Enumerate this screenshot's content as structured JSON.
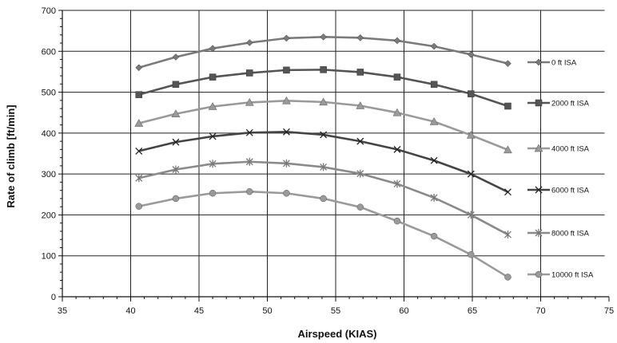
{
  "chart_data": {
    "type": "line",
    "xlabel": "Airspeed (KIAS)",
    "ylabel": "Rate of climb [ft/min]",
    "xlim": [
      35,
      75
    ],
    "ylim": [
      0,
      700
    ],
    "x_ticks": [
      35,
      40,
      45,
      50,
      55,
      60,
      65,
      70,
      75
    ],
    "y_ticks": [
      0,
      100,
      200,
      300,
      400,
      500,
      600,
      700
    ],
    "grid": true,
    "legend_position": "right",
    "x": [
      40.6,
      43.3,
      46.0,
      48.7,
      51.4,
      54.1,
      56.8,
      59.5,
      62.2,
      64.9,
      67.6
    ],
    "series": [
      {
        "name": "0 ft ISA",
        "marker": "diamond",
        "color": "#7a7a7a",
        "values": [
          560,
          586,
          607,
          621,
          632,
          635,
          633,
          626,
          612,
          592,
          570
        ]
      },
      {
        "name": "2000 ft ISA",
        "marker": "square",
        "color": "#555555",
        "values": [
          494,
          519,
          537,
          547,
          554,
          555,
          549,
          537,
          519,
          496,
          466
        ]
      },
      {
        "name": "4000 ft ISA",
        "marker": "triangle",
        "color": "#9a9a9a",
        "values": [
          424,
          447,
          465,
          475,
          479,
          476,
          467,
          450,
          428,
          395,
          359
        ]
      },
      {
        "name": "6000 ft ISA",
        "marker": "x",
        "color": "#444444",
        "values": [
          356,
          378,
          392,
          401,
          403,
          396,
          380,
          360,
          333,
          300,
          256
        ]
      },
      {
        "name": "8000 ft ISA",
        "marker": "star",
        "color": "#8a8a8a",
        "values": [
          290,
          311,
          325,
          330,
          326,
          317,
          301,
          276,
          242,
          200,
          152
        ]
      },
      {
        "name": "10000 ft ISA",
        "marker": "circle",
        "color": "#9a9a9a",
        "values": [
          221,
          240,
          253,
          257,
          253,
          240,
          219,
          185,
          148,
          103,
          48
        ]
      }
    ]
  }
}
